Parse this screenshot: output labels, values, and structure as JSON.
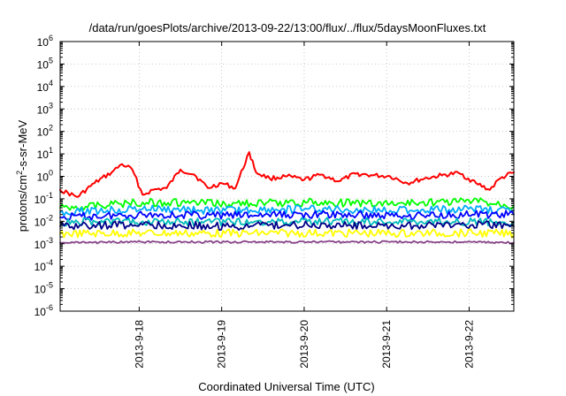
{
  "chart_data": {
    "type": "line",
    "title": "/data/run/goesPlots/archive/2013-09-22/13:00/flux/../flux/5daysMoonFluxes.txt",
    "xlabel": "Coordinated Universal Time (UTC)",
    "ylabel": "protons/cm²-s-sr-MeV",
    "x_range": [
      "2013-09-17T01:00",
      "2013-09-22T13:00"
    ],
    "x_ticks": [
      {
        "date": "2013-09-18",
        "label": "2013-9-18"
      },
      {
        "date": "2013-09-19",
        "label": "2013-9-19"
      },
      {
        "date": "2013-09-20",
        "label": "2013-9-20"
      },
      {
        "date": "2013-09-21",
        "label": "2013-9-21"
      },
      {
        "date": "2013-09-22",
        "label": "2013-9-22"
      }
    ],
    "y_scale": "log",
    "ylim": [
      1e-06,
      1000000.0
    ],
    "y_ticks": [
      {
        "value": 1e-06,
        "base": "10",
        "exp": "-6"
      },
      {
        "value": 1e-05,
        "base": "10",
        "exp": "-5"
      },
      {
        "value": 0.0001,
        "base": "10",
        "exp": "-4"
      },
      {
        "value": 0.001,
        "base": "10",
        "exp": "-3"
      },
      {
        "value": 0.01,
        "base": "10",
        "exp": "-2"
      },
      {
        "value": 0.1,
        "base": "10",
        "exp": "-1"
      },
      {
        "value": 1.0,
        "base": "10",
        "exp": "0"
      },
      {
        "value": 10.0,
        "base": "10",
        "exp": "1"
      },
      {
        "value": 100.0,
        "base": "10",
        "exp": "2"
      },
      {
        "value": 1000.0,
        "base": "10",
        "exp": "3"
      },
      {
        "value": 10000.0,
        "base": "10",
        "exp": "4"
      },
      {
        "value": 100000.0,
        "base": "10",
        "exp": "5"
      },
      {
        "value": 1000000.0,
        "base": "10",
        "exp": "6"
      }
    ],
    "grid": true,
    "legend": "none",
    "series": [
      {
        "color": "#ff0000",
        "x": [
          "2013-09-17T01:00",
          "2013-09-17T06:00",
          "2013-09-17T11:00",
          "2013-09-17T16:00",
          "2013-09-17T19:00",
          "2013-09-17T22:00",
          "2013-09-18T01:00",
          "2013-09-18T04:00",
          "2013-09-18T08:00",
          "2013-09-18T12:00",
          "2013-09-18T16:00",
          "2013-09-18T20:00",
          "2013-09-19T00:00",
          "2013-09-19T04:00",
          "2013-09-19T08:00",
          "2013-09-19T10:00",
          "2013-09-19T14:00",
          "2013-09-19T19:00",
          "2013-09-20T00:00",
          "2013-09-20T05:00",
          "2013-09-20T10:00",
          "2013-09-20T15:00",
          "2013-09-20T20:00",
          "2013-09-21T01:00",
          "2013-09-21T06:00",
          "2013-09-21T11:00",
          "2013-09-21T16:00",
          "2013-09-21T21:00",
          "2013-09-22T02:00",
          "2013-09-22T06:00",
          "2013-09-22T09:00",
          "2013-09-22T13:00"
        ],
        "values": [
          0.25,
          0.12,
          0.5,
          1.5,
          3.5,
          2.0,
          0.15,
          0.25,
          0.3,
          2.0,
          1.2,
          0.3,
          0.5,
          0.3,
          12,
          1.5,
          0.8,
          1.0,
          0.7,
          1.2,
          0.6,
          1.3,
          1.1,
          1.0,
          0.5,
          0.8,
          1.1,
          1.4,
          0.5,
          0.25,
          0.8,
          1.5
        ]
      },
      {
        "color": "#00ff00",
        "x": [
          "2013-09-17T01:00",
          "2013-09-18T01:00",
          "2013-09-19T01:00",
          "2013-09-20T01:00",
          "2013-09-21T01:00",
          "2013-09-22T01:00",
          "2013-09-22T13:00"
        ],
        "values": [
          0.04,
          0.07,
          0.06,
          0.07,
          0.06,
          0.08,
          0.05
        ]
      },
      {
        "color": "#00aaff",
        "x": [
          "2013-09-17T01:00",
          "2013-09-18T01:00",
          "2013-09-19T01:00",
          "2013-09-20T01:00",
          "2013-09-21T01:00",
          "2013-09-22T01:00",
          "2013-09-22T13:00"
        ],
        "values": [
          0.025,
          0.035,
          0.03,
          0.035,
          0.03,
          0.035,
          0.03
        ]
      },
      {
        "color": "#0000ff",
        "x": [
          "2013-09-17T01:00",
          "2013-09-18T01:00",
          "2013-09-19T01:00",
          "2013-09-20T01:00",
          "2013-09-21T01:00",
          "2013-09-22T01:00",
          "2013-09-22T13:00"
        ],
        "values": [
          0.015,
          0.02,
          0.018,
          0.02,
          0.018,
          0.02,
          0.02
        ]
      },
      {
        "color": "#00bbbb",
        "x": [
          "2013-09-17T01:00",
          "2013-09-18T01:00",
          "2013-09-19T01:00",
          "2013-09-20T01:00",
          "2013-09-21T01:00",
          "2013-09-22T01:00",
          "2013-09-22T13:00"
        ],
        "values": [
          0.009,
          0.01,
          0.009,
          0.01,
          0.009,
          0.01,
          0.009
        ]
      },
      {
        "color": "#000088",
        "x": [
          "2013-09-17T01:00",
          "2013-09-18T01:00",
          "2013-09-19T01:00",
          "2013-09-20T01:00",
          "2013-09-21T01:00",
          "2013-09-22T01:00",
          "2013-09-22T13:00"
        ],
        "values": [
          0.006,
          0.007,
          0.006,
          0.007,
          0.006,
          0.007,
          0.006
        ]
      },
      {
        "color": "#ffff00",
        "x": [
          "2013-09-17T01:00",
          "2013-09-18T01:00",
          "2013-09-19T01:00",
          "2013-09-20T01:00",
          "2013-09-21T01:00",
          "2013-09-22T01:00",
          "2013-09-22T13:00"
        ],
        "values": [
          0.0028,
          0.003,
          0.0029,
          0.003,
          0.0029,
          0.003,
          0.0028
        ]
      },
      {
        "color": "#884488",
        "x": [
          "2013-09-17T01:00",
          "2013-09-18T01:00",
          "2013-09-19T01:00",
          "2013-09-20T01:00",
          "2013-09-21T01:00",
          "2013-09-22T01:00",
          "2013-09-22T13:00"
        ],
        "values": [
          0.0011,
          0.0012,
          0.0012,
          0.0012,
          0.0012,
          0.0012,
          0.0011
        ]
      }
    ]
  }
}
